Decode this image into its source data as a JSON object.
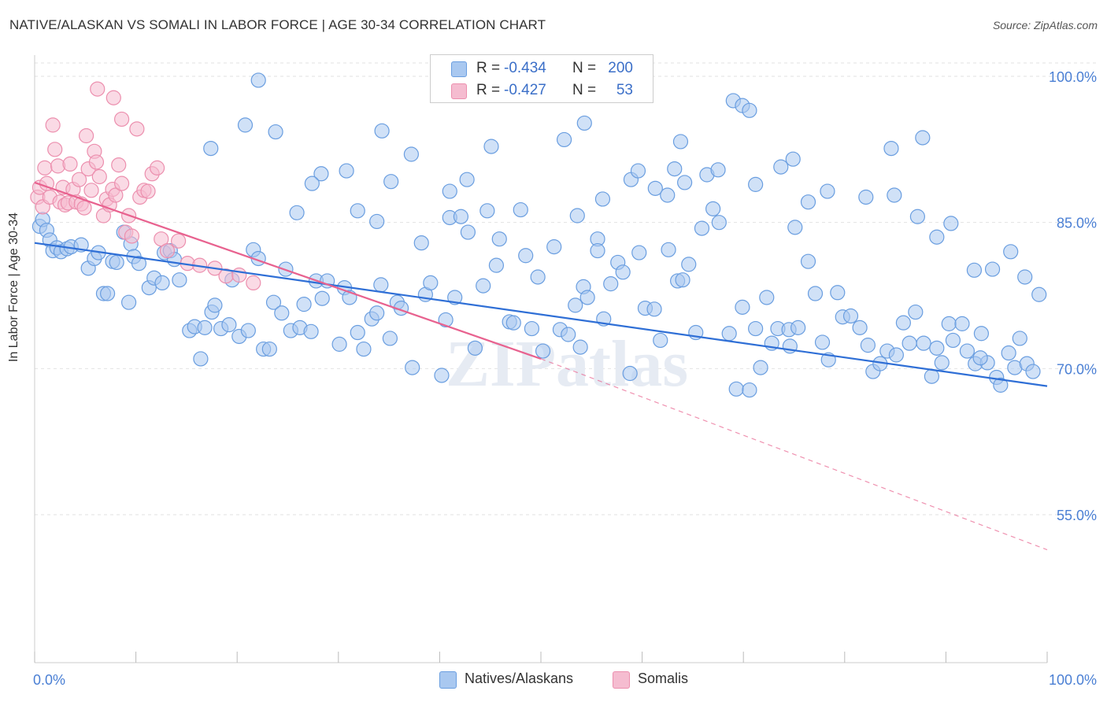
{
  "title": "NATIVE/ALASKAN VS SOMALI IN LABOR FORCE | AGE 30-34 CORRELATION CHART",
  "source": "Source: ZipAtlas.com",
  "watermark": "ZIPatlas",
  "legend": {
    "rows": [
      {
        "r_label": "R =",
        "r_value": "-0.434",
        "n_label": "N =",
        "n_value": "200"
      },
      {
        "r_label": "R =",
        "r_value": "-0.427",
        "n_label": "N =",
        "n_value": "53"
      }
    ]
  },
  "colors": {
    "blue_fill": "#a9c8f0",
    "blue_stroke": "#6a9ee0",
    "blue_line": "#2f6fd6",
    "pink_fill": "#f5bcd0",
    "pink_stroke": "#ec8fae",
    "pink_line": "#e8628f",
    "grid": "#e2e2e2",
    "tick_text": "#4a7fd4"
  },
  "chart_data": {
    "type": "scatter",
    "title": "NATIVE/ALASKAN VS SOMALI IN LABOR FORCE | AGE 30-34 CORRELATION CHART",
    "xlabel": "",
    "ylabel": "In Labor Force | Age 30-34",
    "xlim": [
      0,
      100
    ],
    "ylim": [
      40,
      100
    ],
    "x_tick_labels": [
      "0.0%",
      "100.0%"
    ],
    "y_ticks": [
      100,
      85,
      70,
      55
    ],
    "y_tick_labels": [
      "100.0%",
      "85.0%",
      "70.0%",
      "55.0%"
    ],
    "grid": true,
    "series": [
      {
        "name": "Natives/Alaskans",
        "color": "#a9c8f0",
        "trend": {
          "x0": 0,
          "y0": 82.9,
          "x1": 100,
          "y1": 68.2
        },
        "points": [
          [
            0.5,
            84.6
          ],
          [
            0.8,
            85.3
          ],
          [
            1.2,
            84.2
          ],
          [
            1.5,
            83.2
          ],
          [
            1.8,
            82.1
          ],
          [
            2.2,
            82.4
          ],
          [
            2.6,
            82.0
          ],
          [
            3.2,
            82.3
          ],
          [
            3.6,
            82.5
          ],
          [
            4.6,
            82.7
          ],
          [
            5.3,
            80.3
          ],
          [
            5.9,
            81.3
          ],
          [
            6.3,
            81.9
          ],
          [
            6.8,
            77.7
          ],
          [
            7.2,
            77.7
          ],
          [
            7.7,
            81.0
          ],
          [
            8.1,
            80.9
          ],
          [
            8.8,
            84.0
          ],
          [
            9.3,
            76.8
          ],
          [
            9.5,
            82.8
          ],
          [
            9.8,
            81.5
          ],
          [
            10.3,
            80.8
          ],
          [
            11.3,
            78.3
          ],
          [
            11.8,
            79.3
          ],
          [
            12.6,
            78.8
          ],
          [
            12.8,
            81.9
          ],
          [
            13.4,
            82.1
          ],
          [
            13.8,
            81.2
          ],
          [
            14.3,
            79.1
          ],
          [
            15.3,
            73.9
          ],
          [
            15.8,
            74.3
          ],
          [
            16.4,
            71.0
          ],
          [
            16.8,
            74.2
          ],
          [
            17.5,
            75.8
          ],
          [
            17.8,
            76.5
          ],
          [
            18.4,
            74.1
          ],
          [
            19.2,
            74.5
          ],
          [
            19.5,
            79.1
          ],
          [
            20.2,
            73.3
          ],
          [
            21.1,
            73.9
          ],
          [
            21.6,
            82.2
          ],
          [
            22.1,
            81.3
          ],
          [
            22.6,
            72.0
          ],
          [
            23.2,
            72.0
          ],
          [
            23.6,
            76.8
          ],
          [
            24.4,
            75.7
          ],
          [
            24.8,
            80.2
          ],
          [
            25.3,
            73.9
          ],
          [
            26.2,
            74.2
          ],
          [
            26.6,
            76.6
          ],
          [
            27.3,
            73.8
          ],
          [
            27.8,
            79.0
          ],
          [
            28.4,
            77.2
          ],
          [
            28.9,
            79.0
          ],
          [
            30.1,
            72.5
          ],
          [
            30.6,
            78.3
          ],
          [
            31.1,
            77.3
          ],
          [
            31.9,
            73.7
          ],
          [
            32.5,
            72.0
          ],
          [
            33.3,
            75.1
          ],
          [
            33.8,
            75.7
          ],
          [
            34.2,
            78.6
          ],
          [
            35.1,
            73.1
          ],
          [
            35.8,
            76.8
          ],
          [
            36.2,
            76.2
          ],
          [
            37.3,
            70.1
          ],
          [
            38.2,
            82.9
          ],
          [
            38.6,
            77.6
          ],
          [
            39.1,
            78.8
          ],
          [
            40.2,
            69.3
          ],
          [
            40.6,
            75.0
          ],
          [
            41.0,
            85.5
          ],
          [
            41.5,
            77.3
          ],
          [
            42.1,
            85.6
          ],
          [
            42.8,
            84.0
          ],
          [
            43.5,
            72.1
          ],
          [
            44.3,
            78.5
          ],
          [
            44.7,
            86.2
          ],
          [
            45.6,
            80.6
          ],
          [
            45.9,
            83.3
          ],
          [
            46.9,
            74.8
          ],
          [
            47.3,
            74.7
          ],
          [
            48.0,
            86.3
          ],
          [
            48.5,
            81.6
          ],
          [
            49.1,
            74.1
          ],
          [
            49.7,
            79.4
          ],
          [
            50.2,
            71.8
          ],
          [
            51.3,
            82.5
          ],
          [
            51.9,
            74.0
          ],
          [
            52.7,
            73.5
          ],
          [
            53.4,
            76.5
          ],
          [
            53.9,
            72.2
          ],
          [
            54.2,
            78.4
          ],
          [
            54.6,
            77.3
          ],
          [
            55.6,
            83.3
          ],
          [
            56.2,
            75.1
          ],
          [
            56.9,
            78.7
          ],
          [
            57.6,
            80.9
          ],
          [
            58.1,
            79.9
          ],
          [
            58.8,
            69.5
          ],
          [
            59.7,
            81.9
          ],
          [
            60.3,
            76.2
          ],
          [
            61.2,
            76.1
          ],
          [
            61.8,
            72.9
          ],
          [
            62.6,
            82.2
          ],
          [
            63.5,
            79.0
          ],
          [
            64.0,
            79.1
          ],
          [
            64.6,
            80.7
          ],
          [
            65.3,
            73.7
          ],
          [
            65.9,
            84.4
          ],
          [
            66.4,
            89.9
          ],
          [
            67.0,
            86.4
          ],
          [
            67.6,
            85.0
          ],
          [
            68.6,
            73.6
          ],
          [
            69.3,
            67.9
          ],
          [
            69.9,
            76.3
          ],
          [
            70.6,
            67.8
          ],
          [
            71.2,
            74.1
          ],
          [
            71.7,
            70.1
          ],
          [
            72.3,
            77.3
          ],
          [
            72.8,
            72.6
          ],
          [
            73.4,
            74.1
          ],
          [
            74.5,
            74.0
          ],
          [
            74.6,
            72.3
          ],
          [
            75.1,
            84.5
          ],
          [
            75.4,
            74.2
          ],
          [
            76.4,
            81.0
          ],
          [
            77.1,
            77.7
          ],
          [
            77.8,
            72.7
          ],
          [
            78.4,
            70.9
          ],
          [
            79.3,
            77.8
          ],
          [
            79.8,
            75.3
          ],
          [
            80.6,
            75.4
          ],
          [
            81.5,
            74.2
          ],
          [
            82.3,
            72.4
          ],
          [
            82.8,
            69.7
          ],
          [
            83.5,
            70.5
          ],
          [
            84.2,
            71.8
          ],
          [
            85.1,
            71.4
          ],
          [
            85.8,
            74.7
          ],
          [
            86.4,
            72.6
          ],
          [
            87.0,
            75.8
          ],
          [
            87.8,
            72.6
          ],
          [
            88.6,
            69.2
          ],
          [
            89.1,
            72.1
          ],
          [
            89.6,
            70.6
          ],
          [
            90.3,
            74.6
          ],
          [
            90.7,
            72.9
          ],
          [
            91.6,
            74.6
          ],
          [
            92.1,
            71.8
          ],
          [
            92.9,
            70.5
          ],
          [
            93.5,
            73.6
          ],
          [
            94.1,
            70.6
          ],
          [
            95.0,
            69.1
          ],
          [
            95.4,
            68.3
          ],
          [
            96.2,
            71.6
          ],
          [
            96.8,
            70.1
          ],
          [
            97.3,
            73.1
          ],
          [
            98.0,
            70.5
          ],
          [
            98.6,
            69.7
          ],
          [
            58.9,
            89.4
          ],
          [
            59.6,
            90.3
          ],
          [
            63.8,
            93.3
          ],
          [
            67.5,
            90.4
          ],
          [
            73.7,
            90.7
          ],
          [
            84.6,
            92.6
          ],
          [
            87.7,
            93.7
          ],
          [
            52.3,
            93.5
          ],
          [
            45.1,
            92.8
          ],
          [
            42.7,
            89.4
          ],
          [
            41.0,
            88.2
          ],
          [
            37.2,
            92.0
          ],
          [
            35.2,
            89.2
          ],
          [
            34.3,
            94.4
          ],
          [
            33.8,
            85.1
          ],
          [
            31.9,
            86.2
          ],
          [
            30.8,
            90.3
          ],
          [
            28.3,
            90.0
          ],
          [
            27.4,
            89.0
          ],
          [
            25.9,
            86.0
          ],
          [
            23.8,
            94.3
          ],
          [
            22.1,
            99.6
          ],
          [
            20.8,
            95.0
          ],
          [
            17.4,
            92.6
          ],
          [
            53.6,
            85.7
          ],
          [
            54.3,
            95.2
          ],
          [
            55.6,
            82.1
          ],
          [
            56.1,
            87.4
          ],
          [
            61.3,
            88.5
          ],
          [
            62.5,
            87.8
          ],
          [
            63.2,
            90.5
          ],
          [
            64.2,
            89.1
          ],
          [
            69.0,
            97.5
          ],
          [
            69.9,
            97.0
          ],
          [
            70.6,
            96.5
          ],
          [
            71.2,
            88.9
          ],
          [
            74.9,
            91.5
          ],
          [
            76.4,
            87.1
          ],
          [
            78.3,
            88.2
          ],
          [
            82.1,
            87.6
          ],
          [
            84.9,
            87.8
          ],
          [
            87.2,
            85.6
          ],
          [
            89.1,
            83.5
          ],
          [
            90.5,
            84.9
          ],
          [
            92.8,
            80.1
          ],
          [
            94.6,
            80.2
          ],
          [
            96.4,
            82.0
          ],
          [
            97.8,
            79.4
          ],
          [
            99.2,
            77.6
          ],
          [
            93.4,
            71.1
          ]
        ]
      },
      {
        "name": "Somalis",
        "color": "#f5bcd0",
        "trend": {
          "x0": 0,
          "y0": 89.1,
          "x1": 50,
          "y1": 71.0
        },
        "trend_dashed_to": {
          "x": 100,
          "y": 51.4
        },
        "points": [
          [
            0.3,
            87.6
          ],
          [
            0.5,
            88.6
          ],
          [
            0.8,
            86.6
          ],
          [
            1.0,
            90.6
          ],
          [
            1.2,
            89.0
          ],
          [
            1.5,
            87.6
          ],
          [
            1.8,
            95.0
          ],
          [
            2.0,
            92.5
          ],
          [
            2.3,
            90.8
          ],
          [
            2.5,
            87.1
          ],
          [
            2.8,
            88.6
          ],
          [
            3.0,
            86.8
          ],
          [
            3.3,
            87.0
          ],
          [
            3.5,
            91.0
          ],
          [
            3.8,
            88.4
          ],
          [
            4.1,
            87.1
          ],
          [
            4.4,
            89.4
          ],
          [
            4.6,
            86.9
          ],
          [
            4.9,
            86.5
          ],
          [
            5.1,
            93.9
          ],
          [
            5.3,
            90.5
          ],
          [
            5.6,
            88.3
          ],
          [
            5.9,
            92.3
          ],
          [
            6.1,
            91.2
          ],
          [
            6.4,
            89.7
          ],
          [
            6.8,
            85.7
          ],
          [
            7.1,
            87.4
          ],
          [
            7.4,
            86.8
          ],
          [
            7.7,
            88.4
          ],
          [
            8.0,
            87.8
          ],
          [
            8.3,
            90.9
          ],
          [
            8.6,
            89.0
          ],
          [
            9.0,
            84.0
          ],
          [
            9.3,
            85.7
          ],
          [
            9.6,
            83.6
          ],
          [
            10.1,
            94.6
          ],
          [
            10.4,
            87.6
          ],
          [
            10.8,
            88.3
          ],
          [
            11.2,
            88.2
          ],
          [
            11.6,
            90.0
          ],
          [
            12.1,
            90.6
          ],
          [
            12.5,
            83.3
          ],
          [
            13.1,
            82.1
          ],
          [
            14.2,
            83.1
          ],
          [
            15.1,
            80.8
          ],
          [
            16.3,
            80.6
          ],
          [
            17.8,
            80.3
          ],
          [
            18.9,
            79.5
          ],
          [
            20.2,
            79.6
          ],
          [
            21.6,
            78.8
          ],
          [
            6.2,
            98.7
          ],
          [
            7.8,
            97.8
          ],
          [
            8.6,
            95.6
          ]
        ]
      }
    ]
  },
  "bottom_legend": [
    {
      "label": "Natives/Alaskans"
    },
    {
      "label": "Somalis"
    }
  ]
}
